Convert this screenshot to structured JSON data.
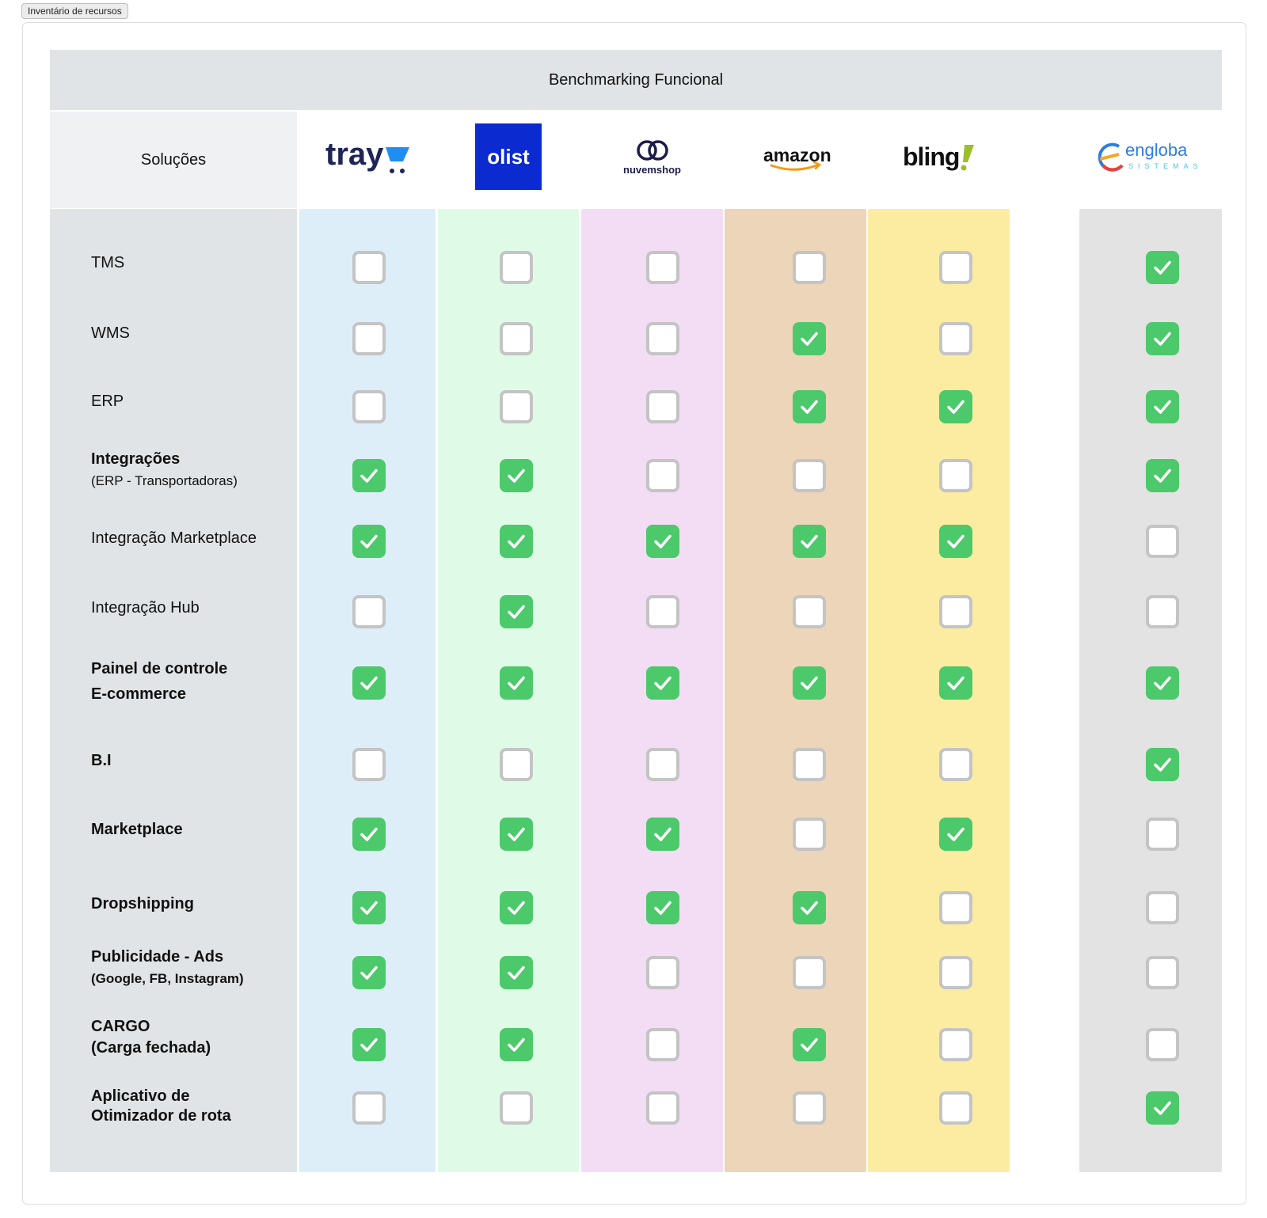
{
  "tag_label": "Inventário de recursos",
  "title": "Benchmarking Funcional",
  "solutions_header": "Soluções",
  "columns": [
    {
      "key": "tray",
      "logo_text": "tray",
      "bg": "#deeef9"
    },
    {
      "key": "olist",
      "logo_text": "olist",
      "bg": "#dffbe8"
    },
    {
      "key": "nuvemshop",
      "logo_text": "nuvemshop",
      "bg": "#f2ddf4"
    },
    {
      "key": "amazon",
      "logo_text": "amazon",
      "bg": "#ecd5b8"
    },
    {
      "key": "bling",
      "logo_text": "bling",
      "bg": "#fbeca1"
    },
    {
      "key": "engloba",
      "logo_text": "engloba",
      "logo_subtext": "SISTEMAS",
      "bg": "#e3e3e3"
    }
  ],
  "rows": [
    {
      "label": "TMS",
      "values": [
        false,
        false,
        false,
        false,
        false,
        true
      ]
    },
    {
      "label": "WMS",
      "values": [
        false,
        false,
        false,
        true,
        false,
        true
      ]
    },
    {
      "label": "ERP",
      "values": [
        false,
        false,
        false,
        true,
        true,
        true
      ]
    },
    {
      "label": "Integrações",
      "sublabel": "(ERP - Transportadoras)",
      "values": [
        true,
        true,
        false,
        false,
        false,
        true
      ]
    },
    {
      "label": "Integração Marketplace",
      "values": [
        true,
        true,
        true,
        true,
        true,
        false
      ]
    },
    {
      "label": "Integração Hub",
      "values": [
        false,
        true,
        false,
        false,
        false,
        false
      ]
    },
    {
      "label": "Painel de controle",
      "sublabel": "E-commerce",
      "values": [
        true,
        true,
        true,
        true,
        true,
        true
      ]
    },
    {
      "label": "B.I",
      "values": [
        false,
        false,
        false,
        false,
        false,
        true
      ]
    },
    {
      "label": "Marketplace",
      "values": [
        true,
        true,
        true,
        false,
        true,
        false
      ]
    },
    {
      "label": "Dropshipping",
      "values": [
        true,
        true,
        true,
        true,
        false,
        false
      ]
    },
    {
      "label": "Publicidade - Ads",
      "sublabel": "(Google, FB, Instagram)",
      "values": [
        true,
        true,
        false,
        false,
        false,
        false
      ]
    },
    {
      "label": "CARGO",
      "sublabel": "(Carga fechada)",
      "values": [
        true,
        true,
        false,
        true,
        false,
        false
      ]
    },
    {
      "label": "Aplicativo de",
      "sublabel": "Otimizador de rota",
      "values": [
        false,
        false,
        false,
        false,
        false,
        true
      ]
    }
  ]
}
